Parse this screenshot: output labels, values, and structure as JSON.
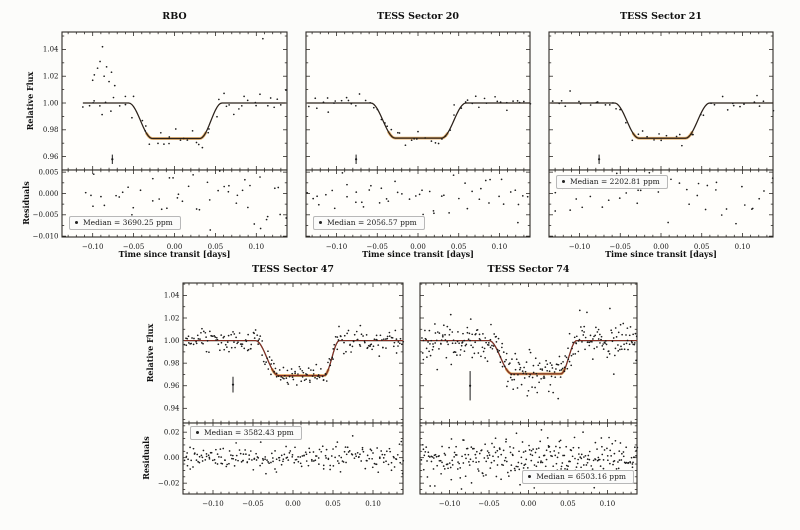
{
  "figure": {
    "colors": {
      "frame": "#2d2a26",
      "point": "#1b1b1b",
      "model": "#2b211a",
      "model_red": "#9e3123",
      "glow": "#e0a04e",
      "background": "#fcfcfa",
      "panel_fill": "#fffefb"
    }
  },
  "chart_data": [
    {
      "type": "scatter",
      "title": "RBO",
      "xlabel": "Time since transit [days]",
      "ylabel": "Relative Flux",
      "ylabel_residuals": "Residuals",
      "x_range": [
        -0.1375,
        0.1375
      ],
      "xticks": [
        -0.1,
        -0.05,
        0.0,
        0.05,
        0.1
      ],
      "xminor": 0.01,
      "flux": {
        "ylim": [
          0.95,
          1.053
        ],
        "yticks": [
          1.04,
          1.02,
          1.0,
          0.98,
          0.96
        ],
        "yminor": 0.01,
        "ytick_decimals": 2,
        "show_ytick_labels": true,
        "model": {
          "baseline": 1.0,
          "depth": 0.0265,
          "t1": -0.056,
          "t2": -0.027,
          "t3": 0.031,
          "t4": 0.058,
          "red_overlay": false
        },
        "scatter": {
          "n": 52,
          "sigma": 0.0042,
          "seed": 101,
          "xmin": -0.112,
          "xmax": 0.137
        },
        "extra_points": [
          [
            -0.1,
            1.017
          ],
          [
            -0.098,
            1.021
          ],
          [
            -0.094,
            1.026
          ],
          [
            -0.091,
            1.031
          ],
          [
            -0.088,
            1.042
          ],
          [
            -0.086,
            1.02
          ],
          [
            -0.083,
            1.027
          ],
          [
            -0.08,
            1.016
          ],
          [
            -0.077,
            1.023
          ],
          [
            -0.073,
            1.013
          ],
          [
            0.108,
            1.048
          ]
        ],
        "errorbar": {
          "x": -0.076,
          "y": 0.958,
          "half": 0.0035
        }
      },
      "residuals": {
        "ylim": [
          -0.0102,
          0.0055
        ],
        "yticks": [
          0.005,
          0.0,
          -0.005,
          -0.01
        ],
        "yminor": 0.0025,
        "ytick_decimals": 3,
        "show_ytick_labels": true,
        "scatter": {
          "n": 56,
          "sigma": 0.0045,
          "seed": 102,
          "xmin": -0.112,
          "xmax": 0.137
        },
        "legend": {
          "label": "Median = 3690.25 ppm",
          "median_ppm": 3690.25,
          "position": "bottom-left"
        }
      }
    },
    {
      "type": "scatter",
      "title": "TESS Sector 20",
      "xlabel": "Time since transit [days]",
      "ylabel": "Relative Flux",
      "ylabel_residuals": "Residuals",
      "x_range": [
        -0.1375,
        0.1375
      ],
      "xticks": [
        -0.1,
        -0.05,
        0.0,
        0.05,
        0.1
      ],
      "xminor": 0.01,
      "flux": {
        "ylim": [
          0.95,
          1.053
        ],
        "yticks": [
          1.04,
          1.02,
          1.0,
          0.98,
          0.96
        ],
        "yminor": 0.01,
        "ytick_decimals": 2,
        "show_ytick_labels": false,
        "model": {
          "baseline": 1.0,
          "depth": 0.0262,
          "t1": -0.058,
          "t2": -0.028,
          "t3": 0.029,
          "t4": 0.059,
          "red_overlay": false
        },
        "scatter": {
          "n": 56,
          "sigma": 0.0028,
          "seed": 201,
          "xmin": -0.136,
          "xmax": 0.138
        },
        "extra_points": [],
        "errorbar": {
          "x": -0.076,
          "y": 0.958,
          "half": 0.0035
        }
      },
      "residuals": {
        "ylim": [
          -0.0102,
          0.0055
        ],
        "yticks": [
          0.005,
          0.0,
          -0.005,
          -0.01
        ],
        "yminor": 0.0025,
        "ytick_decimals": 3,
        "show_ytick_labels": false,
        "scatter": {
          "n": 56,
          "sigma": 0.003,
          "seed": 202,
          "xmin": -0.136,
          "xmax": 0.138
        },
        "legend": {
          "label": "Median = 2056.57 ppm",
          "median_ppm": 2056.57,
          "position": "bottom-left"
        }
      }
    },
    {
      "type": "scatter",
      "title": "TESS Sector 21",
      "xlabel": "Time since transit [days]",
      "ylabel": "Relative Flux",
      "ylabel_residuals": "Residuals",
      "x_range": [
        -0.1375,
        0.1375
      ],
      "xticks": [
        -0.1,
        -0.05,
        0.0,
        0.05,
        0.1
      ],
      "xminor": 0.01,
      "flux": {
        "ylim": [
          0.95,
          1.053
        ],
        "yticks": [
          1.04,
          1.02,
          1.0,
          0.98,
          0.96
        ],
        "yminor": 0.01,
        "ytick_decimals": 2,
        "show_ytick_labels": false,
        "model": {
          "baseline": 1.0,
          "depth": 0.0263,
          "t1": -0.057,
          "t2": -0.027,
          "t3": 0.03,
          "t4": 0.06,
          "red_overlay": false
        },
        "scatter": {
          "n": 44,
          "sigma": 0.0032,
          "seed": 301,
          "xmin": -0.136,
          "xmax": 0.138
        },
        "extra_points": [],
        "errorbar": {
          "x": -0.076,
          "y": 0.958,
          "half": 0.0035
        }
      },
      "residuals": {
        "ylim": [
          -0.0102,
          0.0055
        ],
        "yticks": [
          0.005,
          0.0,
          -0.005,
          -0.01
        ],
        "yminor": 0.0025,
        "ytick_decimals": 3,
        "show_ytick_labels": false,
        "scatter": {
          "n": 44,
          "sigma": 0.0033,
          "seed": 302,
          "xmin": -0.136,
          "xmax": 0.138
        },
        "legend": {
          "label": "Median = 2202.81 ppm",
          "median_ppm": 2202.81,
          "position": "top-left"
        }
      }
    },
    {
      "type": "scatter",
      "title": "TESS Sector 47",
      "ylabel": "Relative Flux",
      "ylabel_residuals": "Residuals",
      "x_range": [
        -0.1375,
        0.1375
      ],
      "xticks": [
        -0.1,
        -0.05,
        0.0,
        0.05,
        0.1
      ],
      "xminor": 0.01,
      "flux": {
        "ylim": [
          0.927,
          1.051
        ],
        "yticks": [
          1.04,
          1.02,
          1.0,
          0.98,
          0.96,
          0.94
        ],
        "yminor": 0.01,
        "ytick_decimals": 2,
        "show_ytick_labels": true,
        "model": {
          "baseline": 1.0,
          "depth": 0.031,
          "t1": -0.047,
          "t2": -0.018,
          "t3": 0.039,
          "t4": 0.058,
          "red_overlay": true
        },
        "scatter": {
          "n": 225,
          "sigma": 0.0052,
          "seed": 401,
          "xmin": -0.136,
          "xmax": 0.138
        },
        "extra_points": [],
        "errorbar": {
          "x": -0.075,
          "y": 0.961,
          "half": 0.007
        }
      },
      "residuals": {
        "ylim": [
          -0.0285,
          0.0272
        ],
        "yticks": [
          0.02,
          0.0,
          -0.02
        ],
        "yminor": 0.005,
        "ytick_decimals": 2,
        "show_ytick_labels": true,
        "scatter": {
          "n": 225,
          "sigma": 0.0052,
          "seed": 402,
          "xmin": -0.136,
          "xmax": 0.138
        },
        "legend": {
          "label": "Median = 3582.43 ppm",
          "median_ppm": 3582.43,
          "position": "top-left"
        }
      }
    },
    {
      "type": "scatter",
      "title": "TESS Sector 74",
      "ylabel": "Relative Flux",
      "ylabel_residuals": "Residuals",
      "x_range": [
        -0.1375,
        0.1375
      ],
      "xticks": [
        -0.1,
        -0.05,
        0.0,
        0.05,
        0.1
      ],
      "xminor": 0.01,
      "flux": {
        "ylim": [
          0.927,
          1.051
        ],
        "yticks": [
          1.04,
          1.02,
          1.0,
          0.98,
          0.96,
          0.94
        ],
        "yminor": 0.01,
        "ytick_decimals": 2,
        "show_ytick_labels": false,
        "model": {
          "baseline": 1.0,
          "depth": 0.0295,
          "t1": -0.05,
          "t2": -0.021,
          "t3": 0.041,
          "t4": 0.061,
          "red_overlay": true
        },
        "scatter": {
          "n": 300,
          "sigma": 0.0092,
          "seed": 501,
          "xmin": -0.136,
          "xmax": 0.138
        },
        "extra_points": [],
        "errorbar": {
          "x": -0.074,
          "y": 0.96,
          "half": 0.013
        }
      },
      "residuals": {
        "ylim": [
          -0.0285,
          0.0272
        ],
        "yticks": [
          0.02,
          0.0,
          -0.02
        ],
        "yminor": 0.005,
        "ytick_decimals": 2,
        "show_ytick_labels": false,
        "scatter": {
          "n": 300,
          "sigma": 0.0085,
          "seed": 502,
          "xmin": -0.136,
          "xmax": 0.138
        },
        "legend": {
          "label": "Median = 6503.16 ppm",
          "median_ppm": 6503.16,
          "position": "bottom-right"
        }
      }
    }
  ]
}
